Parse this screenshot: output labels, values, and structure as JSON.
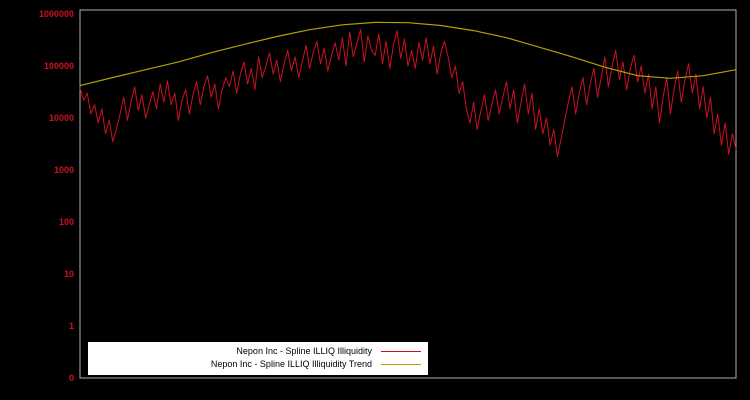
{
  "chart_data": {
    "type": "line",
    "title": "",
    "xlabel": "",
    "ylabel": "",
    "y_log": true,
    "y_ticks": [
      "1000000",
      "100000",
      "10000",
      "1000",
      "100",
      "10",
      "1",
      "0"
    ],
    "ylim_exponents": [
      -1,
      6
    ],
    "grid": false,
    "background_color": "#000000",
    "frame_color": "#b0b0b0",
    "tick_color": "#cc1122",
    "legend_position": "bottom-left-inside",
    "series": [
      {
        "name": "Nepon Inc - Spline ILLIQ Illiquidity",
        "color": "#cc1122",
        "values": [
          38000,
          22000,
          30000,
          12000,
          18000,
          8000,
          15000,
          5000,
          9000,
          3500,
          6000,
          12000,
          25000,
          9000,
          20000,
          40000,
          14000,
          28000,
          10000,
          18000,
          32000,
          15000,
          45000,
          20000,
          52000,
          18000,
          30000,
          9000,
          22000,
          35000,
          12000,
          28000,
          50000,
          18000,
          40000,
          65000,
          25000,
          45000,
          15000,
          35000,
          60000,
          40000,
          80000,
          30000,
          70000,
          120000,
          45000,
          90000,
          35000,
          150000,
          60000,
          100000,
          180000,
          70000,
          130000,
          50000,
          110000,
          200000,
          80000,
          150000,
          60000,
          120000,
          250000,
          90000,
          180000,
          300000,
          110000,
          220000,
          80000,
          160000,
          280000,
          130000,
          350000,
          100000,
          450000,
          150000,
          280000,
          500000,
          120000,
          380000,
          200000,
          160000,
          420000,
          110000,
          300000,
          90000,
          250000,
          480000,
          140000,
          330000,
          100000,
          200000,
          90000,
          280000,
          130000,
          350000,
          110000,
          240000,
          70000,
          180000,
          300000,
          150000,
          60000,
          100000,
          30000,
          50000,
          15000,
          8000,
          20000,
          6000,
          14000,
          28000,
          9000,
          18000,
          35000,
          12000,
          25000,
          50000,
          15000,
          35000,
          8000,
          20000,
          45000,
          12000,
          30000,
          6000,
          15000,
          5000,
          10000,
          3000,
          6000,
          1800,
          4000,
          9000,
          20000,
          40000,
          12000,
          30000,
          60000,
          18000,
          45000,
          90000,
          25000,
          60000,
          150000,
          40000,
          100000,
          200000,
          55000,
          120000,
          35000,
          90000,
          160000,
          50000,
          100000,
          30000,
          70000,
          15000,
          40000,
          8000,
          25000,
          60000,
          12000,
          35000,
          80000,
          20000,
          55000,
          110000,
          30000,
          70000,
          15000,
          40000,
          10000,
          25000,
          5000,
          12000,
          3000,
          8000,
          2000,
          5000,
          2500
        ]
      },
      {
        "name": "Nepon Inc - Spline ILLIQ Illiquidity Trend",
        "color": "#b5a000",
        "x": [
          0,
          0.05,
          0.1,
          0.15,
          0.2,
          0.25,
          0.3,
          0.35,
          0.4,
          0.45,
          0.5,
          0.55,
          0.6,
          0.65,
          0.7,
          0.75,
          0.8,
          0.85,
          0.9,
          0.95,
          1.0
        ],
        "values": [
          42000,
          60000,
          85000,
          120000,
          180000,
          260000,
          370000,
          500000,
          620000,
          690000,
          680000,
          600000,
          480000,
          350000,
          230000,
          150000,
          95000,
          65000,
          58000,
          65000,
          85000
        ]
      }
    ]
  }
}
